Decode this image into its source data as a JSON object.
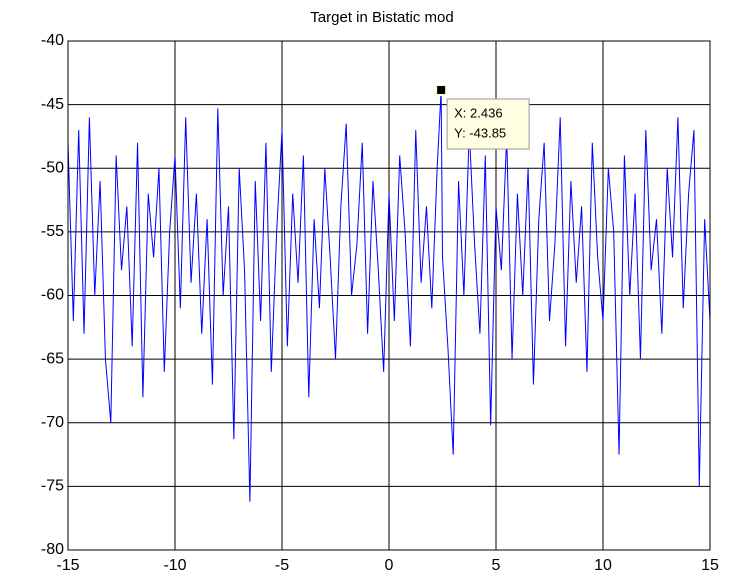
{
  "chart_data": {
    "type": "line",
    "title": "Target in Bistatic mod",
    "x": [
      -15,
      -14.75,
      -14.5,
      -14.25,
      -14,
      -13.75,
      -13.5,
      -13.25,
      -13,
      -12.75,
      -12.5,
      -12.25,
      -12,
      -11.75,
      -11.5,
      -11.25,
      -11,
      -10.75,
      -10.5,
      -10.25,
      -10,
      -9.75,
      -9.5,
      -9.25,
      -9,
      -8.75,
      -8.5,
      -8.25,
      -8,
      -7.75,
      -7.5,
      -7.25,
      -7,
      -6.75,
      -6.5,
      -6.25,
      -6,
      -5.75,
      -5.5,
      -5.25,
      -5,
      -4.75,
      -4.5,
      -4.25,
      -4,
      -3.75,
      -3.5,
      -3.25,
      -3,
      -2.75,
      -2.5,
      -2.25,
      -2,
      -1.75,
      -1.5,
      -1.25,
      -1,
      -0.75,
      -0.5,
      -0.25,
      0,
      0.25,
      0.5,
      0.75,
      1,
      1.25,
      1.5,
      1.75,
      2,
      2.25,
      2.436,
      2.5,
      2.75,
      3,
      3.25,
      3.5,
      3.75,
      4,
      4.25,
      4.5,
      4.75,
      5,
      5.25,
      5.5,
      5.75,
      6,
      6.25,
      6.5,
      6.75,
      7,
      7.25,
      7.5,
      7.75,
      8,
      8.25,
      8.5,
      8.75,
      9,
      9.25,
      9.5,
      9.75,
      10,
      10.25,
      10.5,
      10.75,
      11,
      11.25,
      11.5,
      11.75,
      12,
      12.25,
      12.5,
      12.75,
      13,
      13.25,
      13.5,
      13.75,
      14,
      14.25,
      14.5,
      14.75,
      15
    ],
    "values": [
      -48,
      -62,
      -47,
      -63,
      -46,
      -60,
      -51,
      -65,
      -70,
      -49,
      -58,
      -53,
      -64,
      -48,
      -68,
      -52,
      -57,
      -50,
      -66,
      -55,
      -49,
      -61,
      -46,
      -59,
      -52,
      -63,
      -54,
      -67,
      -45.3,
      -60,
      -53,
      -71.3,
      -50,
      -58,
      -76.2,
      -51,
      -62,
      -48,
      -66,
      -55,
      -47,
      -64,
      -52,
      -59,
      -49,
      -68,
      -54,
      -61,
      -50,
      -57,
      -65,
      -53,
      -46.5,
      -60,
      -56,
      -48,
      -63,
      -51,
      -58,
      -66,
      -52,
      -62,
      -49,
      -55,
      -64,
      -47,
      -59,
      -53,
      -61,
      -50,
      -43.85,
      -57,
      -64,
      -72.5,
      -51,
      -60,
      -47,
      -56,
      -63,
      -49,
      -70.2,
      -53,
      -58,
      -47.5,
      -65,
      -52,
      -60,
      -50,
      -67,
      -54,
      -48,
      -62,
      -56,
      -46,
      -64,
      -51,
      -59,
      -53,
      -66,
      -48,
      -57,
      -62,
      -50,
      -55,
      -72.5,
      -49,
      -60,
      -52,
      -65,
      -47,
      -58,
      -54,
      -63,
      -50,
      -57,
      -46,
      -61,
      -52,
      -47,
      -75,
      -54,
      -62
    ],
    "color": "#0000ff",
    "xlim": [
      -15,
      15
    ],
    "ylim": [
      -80,
      -40
    ],
    "xticks": [
      -15,
      -10,
      -5,
      0,
      5,
      10,
      15
    ],
    "yticks": [
      -80,
      -75,
      -70,
      -65,
      -60,
      -55,
      -50,
      -45,
      -40
    ],
    "grid": true,
    "annotations": [
      {
        "x": 2.436,
        "y": -43.85,
        "text": [
          "X: 2.436",
          "Y: -43.85"
        ]
      }
    ]
  }
}
